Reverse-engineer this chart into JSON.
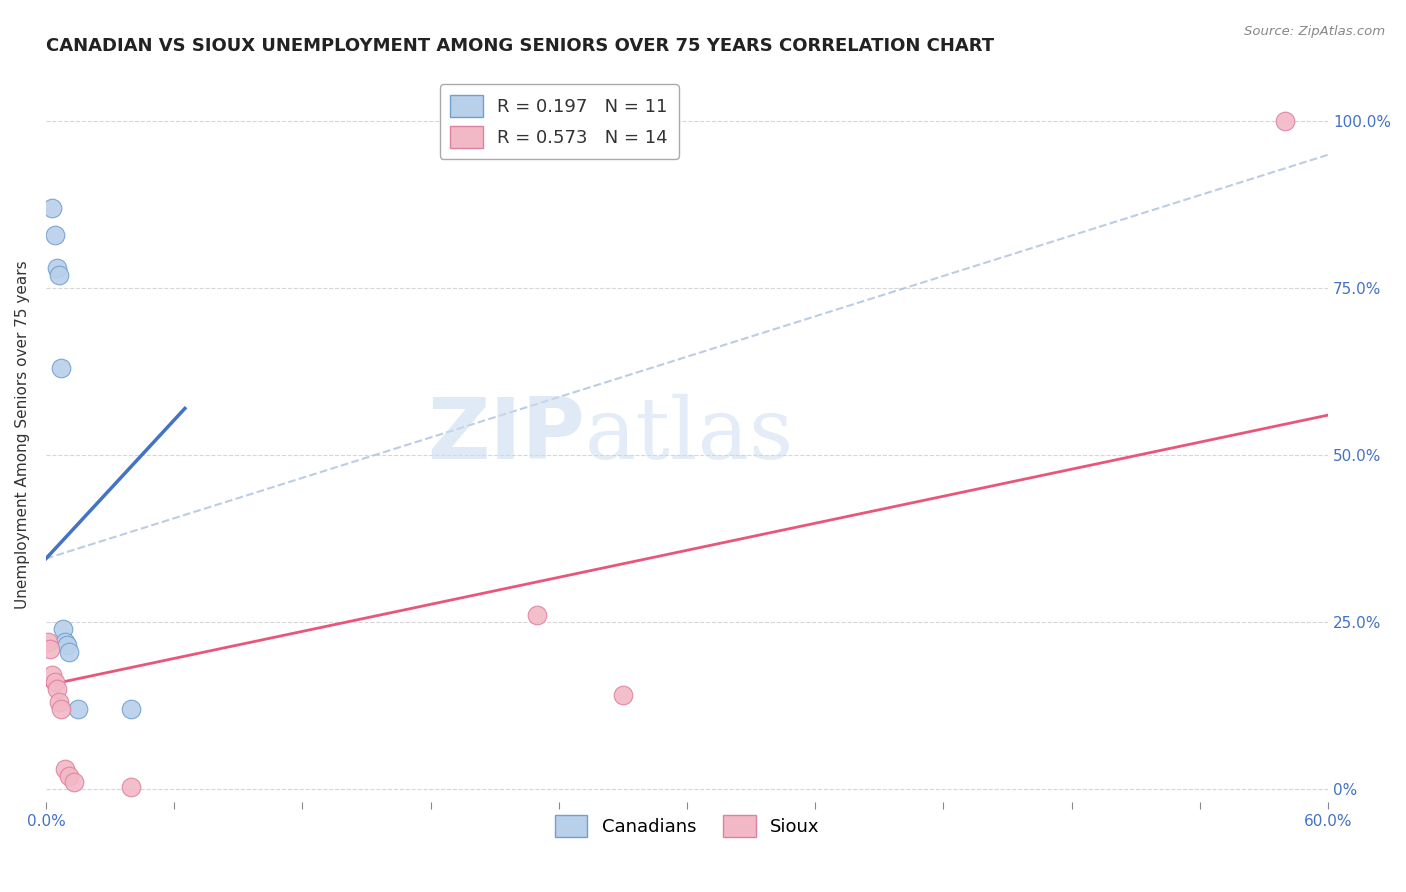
{
  "title": "CANADIAN VS SIOUX UNEMPLOYMENT AMONG SENIORS OVER 75 YEARS CORRELATION CHART",
  "source": "Source: ZipAtlas.com",
  "ylabel": "Unemployment Among Seniors over 75 years",
  "xmin": 0.0,
  "xmax": 0.6,
  "ymin": -0.02,
  "ymax": 1.08,
  "ytick_values": [
    0,
    0.25,
    0.5,
    0.75,
    1.0
  ],
  "ytick_right_labels": [
    "0%",
    "25.0%",
    "50.0%",
    "75.0%",
    "100.0%"
  ],
  "canadians_R": 0.197,
  "canadians_N": 11,
  "sioux_R": 0.573,
  "sioux_N": 14,
  "canadians_color": "#b8d0ea",
  "canadians_edge_color": "#6fa0d0",
  "canadians_line_color": "#4472c4",
  "sioux_color": "#f2b8c6",
  "sioux_edge_color": "#e080a0",
  "sioux_line_color": "#e8567a",
  "background_color": "#ffffff",
  "grid_color": "#cccccc",
  "canadians_x": [
    0.003,
    0.004,
    0.005,
    0.006,
    0.007,
    0.008,
    0.009,
    0.01,
    0.011,
    0.015,
    0.04
  ],
  "canadians_y": [
    0.87,
    0.83,
    0.78,
    0.77,
    0.63,
    0.24,
    0.22,
    0.215,
    0.205,
    0.12,
    0.12
  ],
  "sioux_x": [
    0.001,
    0.002,
    0.003,
    0.004,
    0.005,
    0.006,
    0.007,
    0.009,
    0.011,
    0.013,
    0.23,
    0.27,
    0.04,
    0.58
  ],
  "sioux_y": [
    0.22,
    0.21,
    0.17,
    0.16,
    0.15,
    0.13,
    0.12,
    0.03,
    0.02,
    0.01,
    0.26,
    0.14,
    0.003,
    1.0
  ],
  "marker_size": 180,
  "canadians_trend_x": [
    0.0,
    0.065
  ],
  "canadians_trend_y": [
    0.345,
    0.57
  ],
  "canadians_dashed_trend_x": [
    0.0,
    0.6
  ],
  "canadians_dashed_trend_y": [
    0.345,
    0.95
  ],
  "sioux_trend_x": [
    0.0,
    0.6
  ],
  "sioux_trend_y": [
    0.155,
    0.56
  ],
  "title_fontsize": 13,
  "axis_label_fontsize": 11,
  "tick_fontsize": 11,
  "legend_fontsize": 13,
  "watermark_zip_color": "#d5e5f5",
  "watermark_atlas_color": "#c8ddf0"
}
